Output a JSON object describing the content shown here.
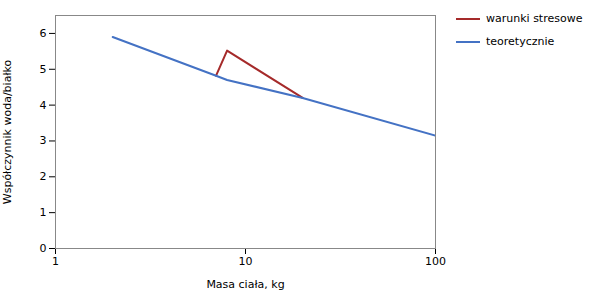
{
  "chart_data": {
    "type": "line",
    "title": "",
    "xlabel": "Masa ciała, kg",
    "ylabel": "Współczynnik woda/białko",
    "series": [
      {
        "name": "warunki stresowe",
        "color": "#A52A2A",
        "x": [
          7.0,
          8.0,
          20.0
        ],
        "values": [
          4.82,
          5.52,
          4.2
        ]
      },
      {
        "name": "teoretycznie",
        "color": "#4472C4",
        "x": [
          2.0,
          7.0,
          8.0,
          20.0,
          100.0
        ],
        "values": [
          5.9,
          4.82,
          4.7,
          4.2,
          3.15
        ]
      }
    ],
    "log": "x",
    "xlim": [
      1,
      100
    ],
    "xticks": [
      1,
      10,
      100
    ],
    "ylim": [
      0,
      6.5
    ],
    "yticks": [
      0,
      1,
      2,
      3,
      4,
      5,
      6
    ],
    "grid": false,
    "legend": "right"
  }
}
